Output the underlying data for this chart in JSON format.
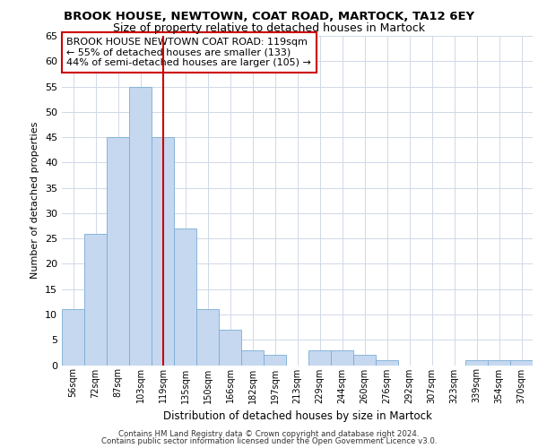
{
  "title1": "BROOK HOUSE, NEWTOWN, COAT ROAD, MARTOCK, TA12 6EY",
  "title2": "Size of property relative to detached houses in Martock",
  "xlabel": "Distribution of detached houses by size in Martock",
  "ylabel": "Number of detached properties",
  "categories": [
    "56sqm",
    "72sqm",
    "87sqm",
    "103sqm",
    "119sqm",
    "135sqm",
    "150sqm",
    "166sqm",
    "182sqm",
    "197sqm",
    "213sqm",
    "229sqm",
    "244sqm",
    "260sqm",
    "276sqm",
    "292sqm",
    "307sqm",
    "323sqm",
    "339sqm",
    "354sqm",
    "370sqm"
  ],
  "values": [
    11,
    26,
    45,
    55,
    45,
    27,
    11,
    7,
    3,
    2,
    0,
    3,
    3,
    2,
    1,
    0,
    0,
    0,
    1,
    1,
    1
  ],
  "bar_color": "#c5d8f0",
  "bar_edge_color": "#7aadd4",
  "vline_x": 4,
  "vline_color": "#cc0000",
  "ylim": [
    0,
    65
  ],
  "yticks": [
    0,
    5,
    10,
    15,
    20,
    25,
    30,
    35,
    40,
    45,
    50,
    55,
    60,
    65
  ],
  "annotation_text": "BROOK HOUSE NEWTOWN COAT ROAD: 119sqm\n← 55% of detached houses are smaller (133)\n44% of semi-detached houses are larger (105) →",
  "footer1": "Contains HM Land Registry data © Crown copyright and database right 2024.",
  "footer2": "Contains public sector information licensed under the Open Government Licence v3.0.",
  "bg_color": "#ffffff",
  "plot_bg_color": "#ffffff",
  "grid_color": "#d0d8e8"
}
